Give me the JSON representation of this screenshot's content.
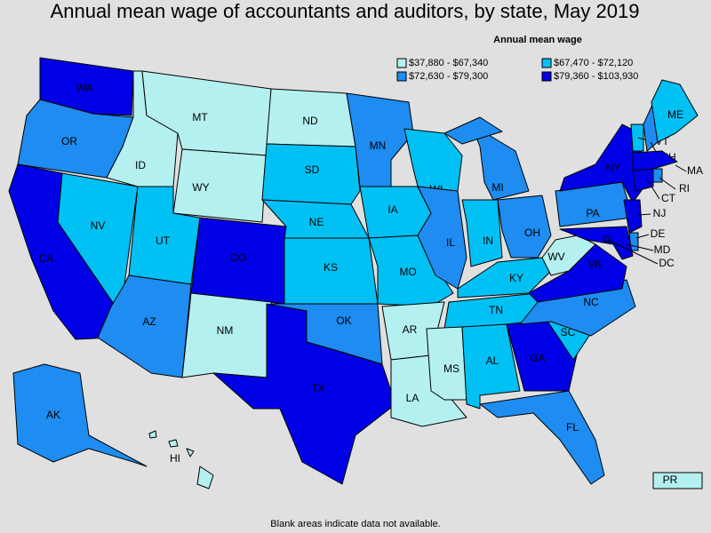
{
  "title": "Annual mean wage of accountants and auditors, by state, May 2019",
  "legend": {
    "title": "Annual mean wage",
    "items": [
      {
        "label": "$37,880 - $67,340",
        "color": "#b4f0f0"
      },
      {
        "label": "$67,470 - $72,120",
        "color": "#00c0f4"
      },
      {
        "label": "$72,630 - $79,300",
        "color": "#1e8cf0"
      },
      {
        "label": "$79,360 - $103,930",
        "color": "#0000e6"
      }
    ]
  },
  "states": [
    {
      "label": "WA",
      "color": "#0000e6"
    },
    {
      "label": "OR",
      "color": "#1e8cf0"
    },
    {
      "label": "CA",
      "color": "#0000e6"
    },
    {
      "label": "NV",
      "color": "#00c0f4"
    },
    {
      "label": "ID",
      "color": "#b4f0f0"
    },
    {
      "label": "MT",
      "color": "#b4f0f0"
    },
    {
      "label": "WY",
      "color": "#b4f0f0"
    },
    {
      "label": "UT",
      "color": "#00c0f4"
    },
    {
      "label": "AZ",
      "color": "#1e8cf0"
    },
    {
      "label": "CO",
      "color": "#0000e6"
    },
    {
      "label": "NM",
      "color": "#b4f0f0"
    },
    {
      "label": "ND",
      "color": "#b4f0f0"
    },
    {
      "label": "SD",
      "color": "#00c0f4"
    },
    {
      "label": "NE",
      "color": "#00c0f4"
    },
    {
      "label": "KS",
      "color": "#00c0f4"
    },
    {
      "label": "OK",
      "color": "#1e8cf0"
    },
    {
      "label": "TX",
      "color": "#0000e6"
    },
    {
      "label": "MN",
      "color": "#1e8cf0"
    },
    {
      "label": "IA",
      "color": "#00c0f4"
    },
    {
      "label": "MO",
      "color": "#00c0f4"
    },
    {
      "label": "AR",
      "color": "#b4f0f0"
    },
    {
      "label": "LA",
      "color": "#b4f0f0"
    },
    {
      "label": "WI",
      "color": "#00c0f4"
    },
    {
      "label": "IL",
      "color": "#1e8cf0"
    },
    {
      "label": "MI",
      "color": "#1e8cf0"
    },
    {
      "label": "IN",
      "color": "#00c0f4"
    },
    {
      "label": "OH",
      "color": "#1e8cf0"
    },
    {
      "label": "KY",
      "color": "#00c0f4"
    },
    {
      "label": "TN",
      "color": "#00c0f4"
    },
    {
      "label": "MS",
      "color": "#b4f0f0"
    },
    {
      "label": "AL",
      "color": "#00c0f4"
    },
    {
      "label": "GA",
      "color": "#0000e6"
    },
    {
      "label": "FL",
      "color": "#1e8cf0"
    },
    {
      "label": "SC",
      "color": "#00c0f4"
    },
    {
      "label": "NC",
      "color": "#1e8cf0"
    },
    {
      "label": "VA",
      "color": "#0000e6"
    },
    {
      "label": "WV",
      "color": "#b4f0f0"
    },
    {
      "label": "PA",
      "color": "#1e8cf0"
    },
    {
      "label": "NY",
      "color": "#0000e6"
    },
    {
      "label": "NJ",
      "color": "#0000e6"
    },
    {
      "label": "DE",
      "color": "#1e8cf0"
    },
    {
      "label": "MD",
      "color": "#0000e6"
    },
    {
      "label": "DC",
      "color": "#0000e6"
    },
    {
      "label": "VT",
      "color": "#00c0f4"
    },
    {
      "label": "NH",
      "color": "#1e8cf0"
    },
    {
      "label": "ME",
      "color": "#00c0f4"
    },
    {
      "label": "MA",
      "color": "#0000e6"
    },
    {
      "label": "CT",
      "color": "#0000e6"
    },
    {
      "label": "RI",
      "color": "#1e8cf0"
    },
    {
      "label": "AK",
      "color": "#1e8cf0"
    },
    {
      "label": "HI",
      "color": "#b4f0f0"
    },
    {
      "label": "PR",
      "color": "#b4f0f0"
    }
  ],
  "footnote": "Blank areas indicate data not available."
}
